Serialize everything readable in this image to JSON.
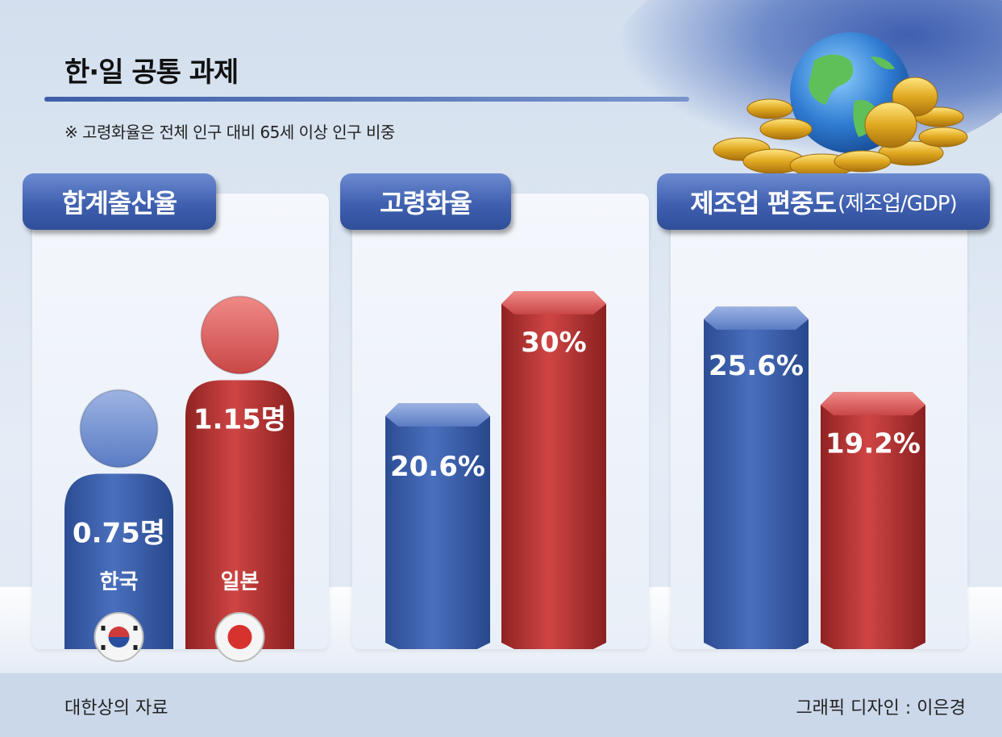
{
  "title": "한·일 공통 과제",
  "note": "※ 고령화율은 전체 인구 대비 65세 이상 인구 비중",
  "source": "대한상의 자료",
  "credit": "그래픽 디자인 : 이은경",
  "colors": {
    "korea": "#3a5fae",
    "japan": "#c23a38",
    "tab": "#3f60b0"
  },
  "chart_data": [
    {
      "type": "bar",
      "title": "합계출산율",
      "categories": [
        "한국",
        "일본"
      ],
      "values": [
        0.75,
        1.15
      ],
      "value_labels": [
        "0.75명",
        "1.15명"
      ],
      "unit": "명"
    },
    {
      "type": "bar",
      "title": "고령화율",
      "categories": [
        "한국",
        "일본"
      ],
      "values": [
        20.6,
        30
      ],
      "value_labels": [
        "20.6%",
        "30%"
      ],
      "unit": "%"
    },
    {
      "type": "bar",
      "title": "제조업 편중도",
      "title_note": "(제조업/GDP)",
      "categories": [
        "한국",
        "일본"
      ],
      "values": [
        25.6,
        19.2
      ],
      "value_labels": [
        "25.6%",
        "19.2%"
      ],
      "unit": "%"
    }
  ]
}
